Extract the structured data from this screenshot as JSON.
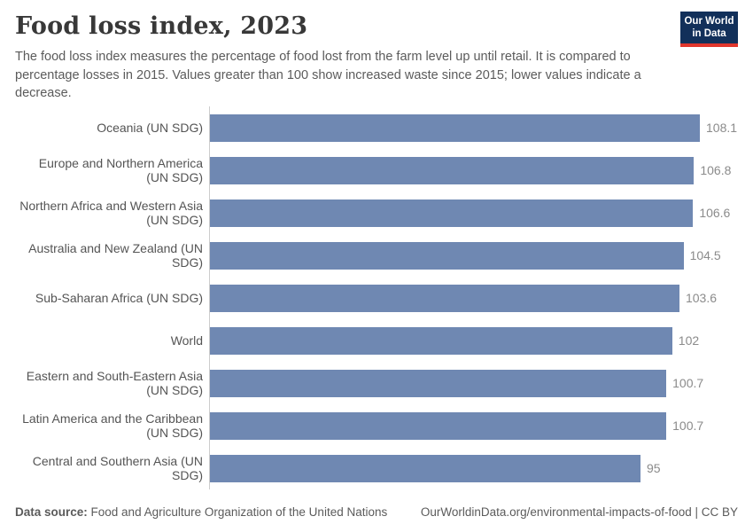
{
  "header": {
    "title": "Food loss index, 2023",
    "subtitle": "The food loss index measures the percentage of food lost from the farm level up until retail. It is compared to percentage losses in 2015. Values greater than 100 show increased waste since 2015; lower values indicate a decrease.",
    "logo": {
      "line1": "Our World",
      "line2": "in Data"
    }
  },
  "chart_data": {
    "type": "bar",
    "orientation": "horizontal",
    "title": "Food loss index, 2023",
    "categories": [
      "Oceania (UN SDG)",
      "Europe and Northern America (UN SDG)",
      "Northern Africa and Western Asia (UN SDG)",
      "Australia and New Zealand (UN SDG)",
      "Sub-Saharan Africa (UN SDG)",
      "World",
      "Eastern and South-Eastern Asia (UN SDG)",
      "Latin America and the Caribbean (UN SDG)",
      "Central and Southern Asia (UN SDG)"
    ],
    "values": [
      108.1,
      106.8,
      106.6,
      104.5,
      103.6,
      102,
      100.7,
      100.7,
      95
    ],
    "value_labels": [
      "108.1",
      "106.8",
      "106.6",
      "104.5",
      "103.6",
      "102",
      "100.7",
      "100.7",
      "95"
    ],
    "xlabel": "",
    "ylabel": "",
    "xlim": [
      0,
      108.1
    ],
    "grid": false,
    "legend": "none",
    "bar_color": "#6f88b2",
    "axis_line_color": "#cccccc"
  },
  "footer": {
    "data_source_label": "Data source:",
    "data_source_value": " Food and Agriculture Organization of the United Nations",
    "link": "OurWorldinData.org/environmental-impacts-of-food | CC BY"
  },
  "colors": {
    "title": "#383838",
    "subtitle": "#5b5b5b",
    "category_label": "#545454",
    "value_label": "#8b8b8b",
    "logo_bg": "#12305a",
    "logo_accent": "#e0362d"
  }
}
